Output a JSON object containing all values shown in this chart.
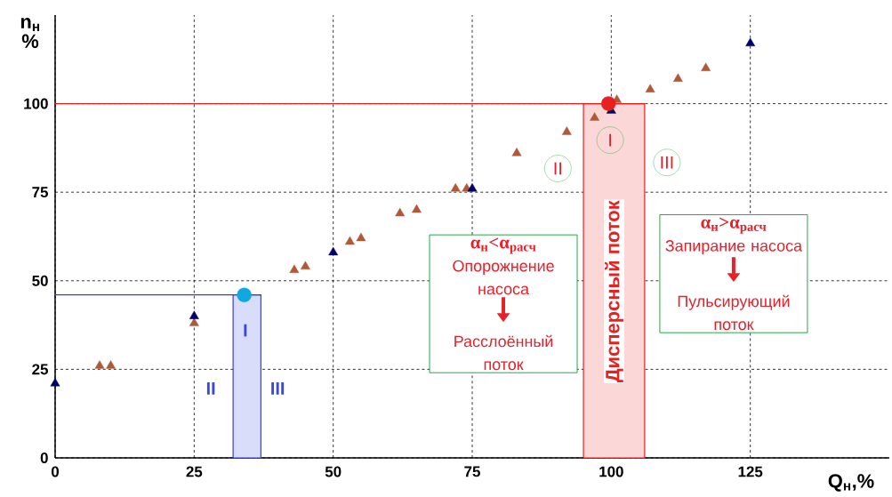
{
  "chart_data": {
    "type": "scatter",
    "xlabel": "Q$_{н}$,%",
    "ylabel": "n$_{н}$ %",
    "xlim": [
      0,
      150
    ],
    "ylim": [
      0,
      125
    ],
    "xticks": [
      0,
      25,
      50,
      75,
      100,
      125
    ],
    "yticks": [
      0,
      25,
      50,
      75,
      100
    ],
    "grid": true,
    "series": [
      {
        "color": "#b0583a",
        "marker": "triangle",
        "x": [
          8,
          10,
          25,
          43,
          45,
          53,
          55,
          62,
          65,
          72,
          74,
          83,
          92,
          97,
          101,
          107,
          112,
          117
        ],
        "values": [
          26,
          26,
          38,
          53,
          54,
          61,
          62,
          69,
          70,
          76,
          76,
          86,
          92,
          96,
          101,
          104,
          107,
          110
        ]
      },
      {
        "color": "#000066",
        "marker": "triangle",
        "x": [
          0,
          25,
          50,
          75,
          100,
          125
        ],
        "values": [
          21,
          40,
          58,
          76,
          98,
          117
        ]
      },
      {
        "color": "#10a8e0",
        "marker": "circle",
        "x": [
          34
        ],
        "values": [
          46
        ]
      },
      {
        "color": "#e82020",
        "marker": "circle",
        "x": [
          99.5
        ],
        "values": [
          100
        ]
      }
    ],
    "ref_lines": [
      {
        "axis": "y",
        "value": 100,
        "color": "#e82020"
      },
      {
        "axis": "y",
        "value": 46,
        "color": "#3040e0"
      }
    ],
    "bands": [
      {
        "axis": "x",
        "from": 95,
        "to": 106,
        "label": "Дисперсный поток",
        "color": "#e82020"
      },
      {
        "axis": "x",
        "from": 32,
        "to": 37,
        "color": "#3040e0"
      }
    ],
    "annotations": [
      "I",
      "II",
      "III",
      "I",
      "II",
      "III",
      "α$_{н}$<α$_{расч}$",
      "Опорожнение насоса",
      "Расслоённый поток",
      "α$_{н}$>α$_{расч}$",
      "Запирание насоса",
      "Пульсирующий поток"
    ]
  }
}
